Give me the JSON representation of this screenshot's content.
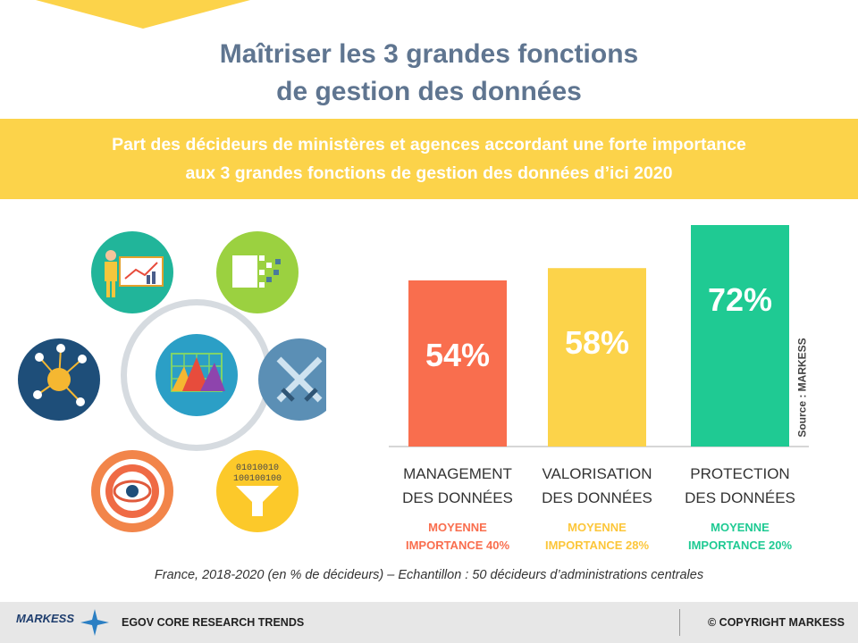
{
  "title_line1": "Maîtriser les 3 grandes fonctions",
  "title_line2": "de gestion des données",
  "subtitle_line1": "Part des décideurs de ministères et agences accordant une forte importance",
  "subtitle_line2": "aux 3 grandes fonctions de gestion des données d’ici 2020",
  "source": "Source : MARKESS",
  "footnote": "France, 2018-2020 (en % de décideurs) – Echantillon : 50 décideurs d’administrations centrales",
  "footer": {
    "logo": "MARKESS",
    "trends": "EGOV CORE RESEARCH TRENDS",
    "copyright": "© COPYRIGHT MARKESS"
  },
  "colors": {
    "title": "#5f7590",
    "banner": "#fcd34a",
    "management": "#f96e4e",
    "valorisation": "#fcd34a",
    "protection": "#1fca93"
  },
  "icons": [
    "presentation-icon",
    "data-transform-icon",
    "swords-icon",
    "data-funnel-icon",
    "eye-target-icon",
    "network-icon",
    "chart-grid-icon"
  ],
  "chart_data": {
    "type": "bar",
    "categories": [
      {
        "line1": "MANAGEMENT",
        "line2": "DES DONNÉES"
      },
      {
        "line1": "VALORISATION",
        "line2": "DES DONNÉES"
      },
      {
        "line1": "PROTECTION",
        "line2": "DES DONNÉES"
      }
    ],
    "values": [
      54,
      58,
      72
    ],
    "data_labels": [
      "54%",
      "58%",
      "72%"
    ],
    "averages": [
      {
        "line1": "MOYENNE",
        "line2": "IMPORTANCE 40%"
      },
      {
        "line1": "MOYENNE",
        "line2": "IMPORTANCE 28%"
      },
      {
        "line1": "MOYENNE",
        "line2": "IMPORTANCE 20%"
      }
    ],
    "colors": [
      "#f96e4e",
      "#fcd34a",
      "#1fca93"
    ],
    "average_colors": [
      "#f96e4e",
      "#fcc63a",
      "#1fca93"
    ],
    "ylim": [
      0,
      72
    ],
    "grid": false
  }
}
